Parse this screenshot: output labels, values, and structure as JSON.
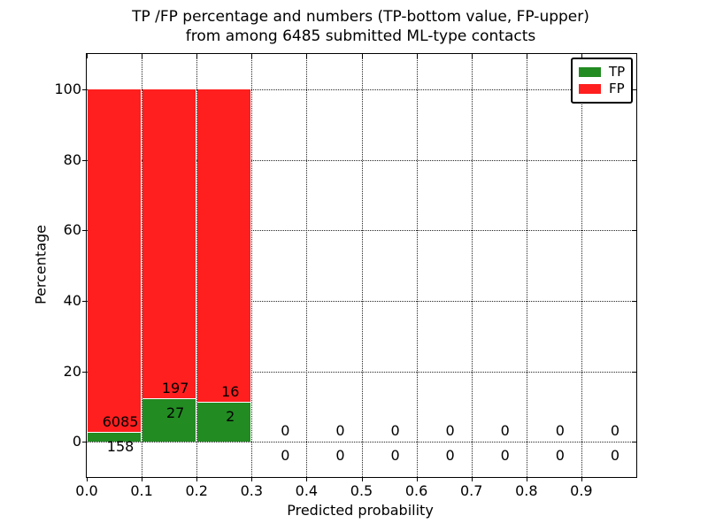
{
  "chart_data": {
    "type": "bar",
    "stacked_percentage": true,
    "title_line1": "TP /FP percentage and numbers (TP-bottom value, FP-upper)",
    "title_line2": "from among 6485 submitted ML-type contacts",
    "xlabel": "Predicted probability",
    "ylabel": "Percentage",
    "total_submitted": 6485,
    "xlim": [
      0.0,
      1.0
    ],
    "ylim": [
      -10,
      110
    ],
    "x_tick_values": [
      0.0,
      0.1,
      0.2,
      0.3,
      0.4,
      0.5,
      0.6,
      0.7,
      0.8,
      0.9
    ],
    "x_tick_labels": [
      "0.0",
      "0.1",
      "0.2",
      "0.3",
      "0.4",
      "0.5",
      "0.6",
      "0.7",
      "0.8",
      "0.9"
    ],
    "y_tick_values": [
      0,
      20,
      40,
      60,
      80,
      100
    ],
    "y_tick_labels": [
      "0",
      "20",
      "40",
      "60",
      "80",
      "100"
    ],
    "grid": "dotted",
    "bins": [
      {
        "x0": 0.0,
        "x1": 0.1,
        "tp": 158,
        "fp": 6085
      },
      {
        "x0": 0.1,
        "x1": 0.2,
        "tp": 27,
        "fp": 197
      },
      {
        "x0": 0.2,
        "x1": 0.3,
        "tp": 2,
        "fp": 16
      },
      {
        "x0": 0.3,
        "x1": 0.4,
        "tp": 0,
        "fp": 0
      },
      {
        "x0": 0.4,
        "x1": 0.5,
        "tp": 0,
        "fp": 0
      },
      {
        "x0": 0.5,
        "x1": 0.6,
        "tp": 0,
        "fp": 0
      },
      {
        "x0": 0.6,
        "x1": 0.7,
        "tp": 0,
        "fp": 0
      },
      {
        "x0": 0.7,
        "x1": 0.8,
        "tp": 0,
        "fp": 0
      },
      {
        "x0": 0.8,
        "x1": 0.9,
        "tp": 0,
        "fp": 0
      },
      {
        "x0": 0.9,
        "x1": 1.0,
        "tp": 0,
        "fp": 0
      }
    ],
    "legend": {
      "position": "upper right",
      "entries": [
        {
          "label": "TP",
          "color": "#228b22"
        },
        {
          "label": "FP",
          "color": "#ff1f1f"
        }
      ]
    },
    "colors": {
      "tp": "#228b22",
      "fp": "#ff1f1f",
      "grid": "#000000",
      "axis": "#000000",
      "text": "#000000",
      "background": "#ffffff"
    }
  }
}
